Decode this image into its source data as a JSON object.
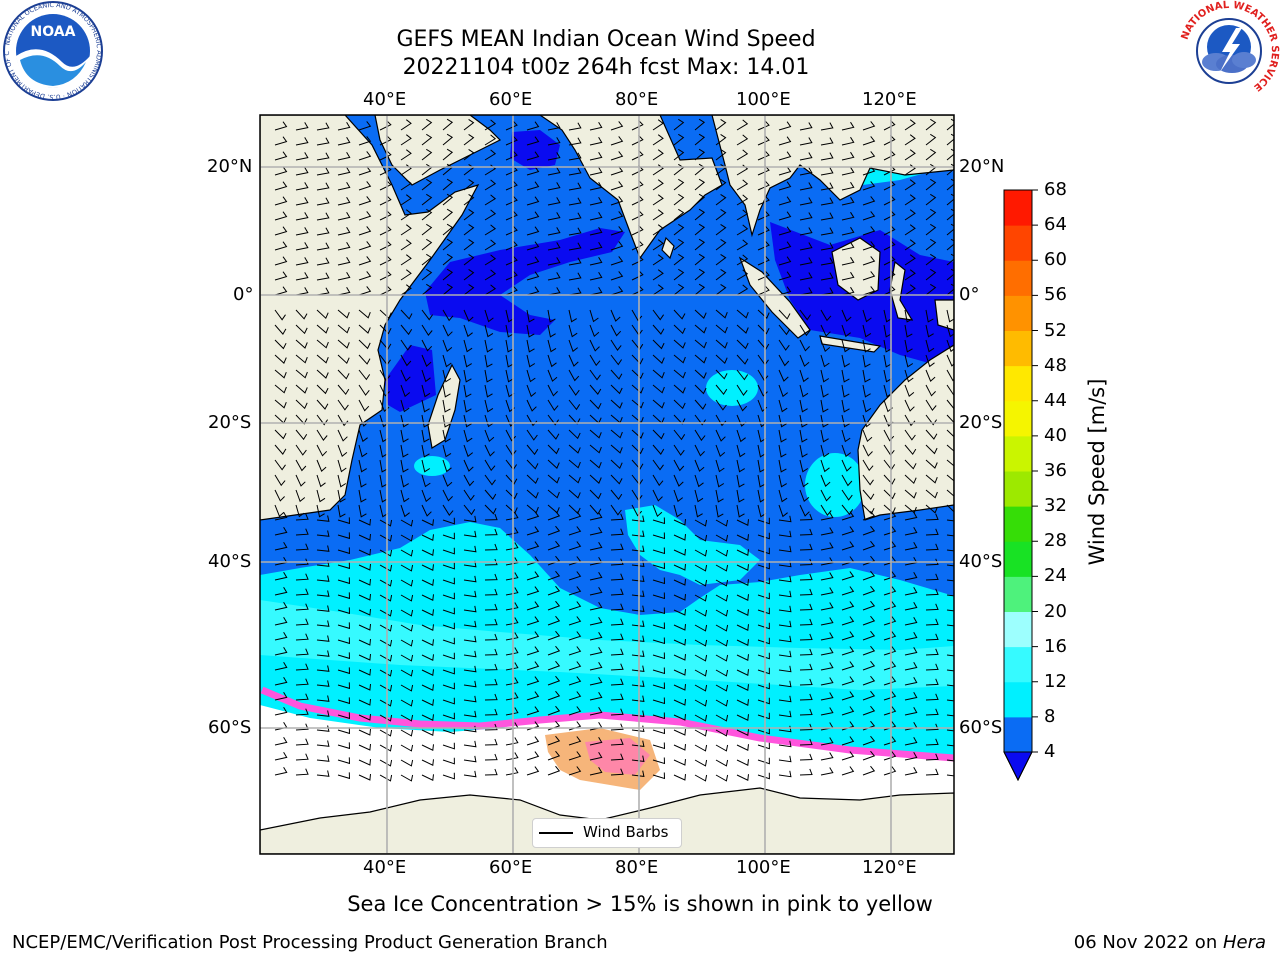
{
  "title": {
    "line1": "GEFS MEAN Indian Ocean Wind Speed",
    "line2": "20221104 t00z 264h fcst   Max: 14.01"
  },
  "map": {
    "lon_labels": [
      "40°E",
      "60°E",
      "80°E",
      "100°E",
      "120°E"
    ],
    "lat_labels": [
      "20°N",
      "0°",
      "20°S",
      "40°S",
      "60°S"
    ],
    "land_color": "#efefdf",
    "legend_label": "Wind Barbs"
  },
  "colorbar": {
    "label": "Wind Speed [m/s]",
    "ticks": [
      "4",
      "8",
      "12",
      "16",
      "20",
      "24",
      "28",
      "32",
      "36",
      "40",
      "44",
      "48",
      "52",
      "56",
      "60",
      "64",
      "68"
    ],
    "colors": [
      "#0a6cf4",
      "#00f0ff",
      "#36faff",
      "#9dfffe",
      "#4ef27c",
      "#18e224",
      "#36dd07",
      "#9de900",
      "#caf500",
      "#f5f500",
      "#ffe800",
      "#ffbb00",
      "#ff9200",
      "#ff6e00",
      "#ff4500",
      "#ff1900"
    ],
    "extend_color": "#0a0bf0"
  },
  "caption": "Sea Ice Concentration > 15% is shown in pink to yellow",
  "footer": {
    "left": "NCEP/EMC/Verification Post Processing Product Generation Branch",
    "date": "06 Nov 2022 on ",
    "machine": "Hera"
  },
  "logos": {
    "noaa_text": "NOAA",
    "noaa_ring": "NATIONAL OCEANIC AND ATMOSPHERIC ADMINISTRATION · U.S. DEPARTMENT OF COMMERCE",
    "nws_ring": "NATIONAL WEATHER SERVICE"
  }
}
